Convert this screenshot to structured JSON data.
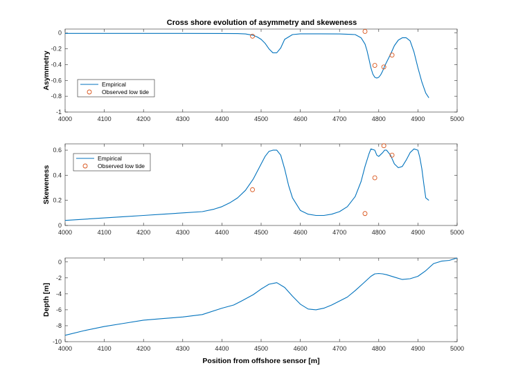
{
  "figure": {
    "title": "Cross shore evolution of asymmetry and skeweness"
  },
  "chart_data": [
    {
      "type": "line",
      "title": "Cross shore evolution of asymmetry and skeweness",
      "xlabel": "",
      "ylabel": "Asymmetry",
      "xlim": [
        4000,
        5000
      ],
      "ylim": [
        -1,
        0.05
      ],
      "xticks": [
        4000,
        4100,
        4200,
        4300,
        4400,
        4500,
        4600,
        4700,
        4800,
        4900,
        5000
      ],
      "xtick_labels": [
        "4000",
        "4100",
        "4200",
        "4300",
        "4400",
        "4500",
        "4600",
        "4700",
        "4800",
        "4900",
        "5000"
      ],
      "yticks": [
        -1,
        -0.8,
        -0.6,
        -0.4,
        -0.2,
        0
      ],
      "ytick_labels": [
        "-1",
        "-0.8",
        "-0.6",
        "-0.4",
        "-0.2",
        "0"
      ],
      "grid": false,
      "legend_position": "lower-left",
      "legend": [
        "Empirical",
        "Observed low tide"
      ],
      "line_color": "#0072BD",
      "marker_color": "#D95319",
      "series": [
        {
          "name": "Empirical",
          "style": "line",
          "x": [
            4000,
            4100,
            4200,
            4300,
            4400,
            4440,
            4460,
            4480,
            4490,
            4500,
            4510,
            4520,
            4530,
            4540,
            4550,
            4560,
            4580,
            4600,
            4650,
            4700,
            4740,
            4755,
            4765,
            4770,
            4775,
            4780,
            4785,
            4790,
            4795,
            4800,
            4805,
            4810,
            4815,
            4820,
            4830,
            4840,
            4850,
            4860,
            4870,
            4880,
            4890,
            4900,
            4910,
            4920,
            4928
          ],
          "y": [
            -0.005,
            -0.005,
            -0.005,
            -0.005,
            -0.006,
            -0.008,
            -0.012,
            -0.03,
            -0.05,
            -0.08,
            -0.13,
            -0.2,
            -0.25,
            -0.25,
            -0.19,
            -0.08,
            -0.02,
            -0.01,
            -0.01,
            -0.012,
            -0.02,
            -0.06,
            -0.14,
            -0.22,
            -0.33,
            -0.44,
            -0.52,
            -0.56,
            -0.57,
            -0.56,
            -0.53,
            -0.48,
            -0.42,
            -0.37,
            -0.27,
            -0.16,
            -0.09,
            -0.06,
            -0.06,
            -0.1,
            -0.24,
            -0.44,
            -0.62,
            -0.76,
            -0.82
          ]
        },
        {
          "name": "Observed low tide",
          "style": "marker",
          "x": [
            4478,
            4765,
            4790,
            4813,
            4834
          ],
          "y": [
            -0.04,
            0.02,
            -0.41,
            -0.43,
            -0.28
          ]
        }
      ]
    },
    {
      "type": "line",
      "title": "",
      "xlabel": "",
      "ylabel": "Skeweness",
      "xlim": [
        4000,
        5000
      ],
      "ylim": [
        0,
        0.65
      ],
      "xticks": [
        4000,
        4100,
        4200,
        4300,
        4400,
        4500,
        4600,
        4700,
        4800,
        4900,
        5000
      ],
      "xtick_labels": [
        "4000",
        "4100",
        "4200",
        "4300",
        "4400",
        "4500",
        "4600",
        "4700",
        "4800",
        "4900",
        "5000"
      ],
      "yticks": [
        0,
        0.2,
        0.4,
        0.6
      ],
      "ytick_labels": [
        "0",
        "0.2",
        "0.4",
        "0.6"
      ],
      "grid": false,
      "legend_position": "top-left",
      "legend": [
        "Empirical",
        "Observed low tide"
      ],
      "line_color": "#0072BD",
      "marker_color": "#D95319",
      "series": [
        {
          "name": "Empirical",
          "style": "line",
          "x": [
            4000,
            4050,
            4100,
            4150,
            4200,
            4250,
            4300,
            4350,
            4380,
            4400,
            4420,
            4440,
            4460,
            4480,
            4495,
            4510,
            4520,
            4530,
            4540,
            4550,
            4560,
            4570,
            4580,
            4600,
            4620,
            4640,
            4660,
            4680,
            4700,
            4720,
            4740,
            4755,
            4765,
            4775,
            4780,
            4790,
            4795,
            4800,
            4810,
            4815,
            4820,
            4830,
            4840,
            4850,
            4860,
            4870,
            4880,
            4890,
            4900,
            4905,
            4910,
            4915,
            4920,
            4928
          ],
          "y": [
            0.04,
            0.05,
            0.06,
            0.07,
            0.08,
            0.09,
            0.1,
            0.11,
            0.13,
            0.15,
            0.18,
            0.22,
            0.28,
            0.37,
            0.46,
            0.55,
            0.59,
            0.6,
            0.6,
            0.56,
            0.45,
            0.32,
            0.22,
            0.12,
            0.09,
            0.08,
            0.08,
            0.09,
            0.11,
            0.15,
            0.23,
            0.35,
            0.47,
            0.57,
            0.61,
            0.6,
            0.56,
            0.55,
            0.58,
            0.6,
            0.6,
            0.56,
            0.49,
            0.46,
            0.47,
            0.52,
            0.58,
            0.61,
            0.6,
            0.54,
            0.45,
            0.33,
            0.22,
            0.2
          ]
        },
        {
          "name": "Observed low tide",
          "style": "marker",
          "x": [
            4478,
            4765,
            4790,
            4813,
            4834
          ],
          "y": [
            0.285,
            0.095,
            0.38,
            0.635,
            0.56
          ]
        }
      ]
    },
    {
      "type": "line",
      "title": "",
      "xlabel": "Position from offshore sensor [m]",
      "ylabel": "Depth [m]",
      "xlim": [
        4000,
        5000
      ],
      "ylim": [
        -10,
        0.5
      ],
      "xticks": [
        4000,
        4100,
        4200,
        4300,
        4400,
        4500,
        4600,
        4700,
        4800,
        4900,
        5000
      ],
      "xtick_labels": [
        "4000",
        "4100",
        "4200",
        "4300",
        "4400",
        "4500",
        "4600",
        "4700",
        "4800",
        "4900",
        "5000"
      ],
      "yticks": [
        -10,
        -8,
        -6,
        -4,
        -2,
        0
      ],
      "ytick_labels": [
        "-10",
        "-8",
        "-6",
        "-4",
        "-2",
        "0"
      ],
      "grid": false,
      "line_color": "#0072BD",
      "series": [
        {
          "name": "",
          "style": "line",
          "x": [
            4000,
            4050,
            4100,
            4150,
            4200,
            4250,
            4300,
            4350,
            4400,
            4430,
            4450,
            4480,
            4500,
            4520,
            4540,
            4560,
            4580,
            4600,
            4620,
            4640,
            4660,
            4680,
            4700,
            4720,
            4740,
            4760,
            4780,
            4790,
            4800,
            4810,
            4820,
            4840,
            4860,
            4880,
            4900,
            4920,
            4940,
            4960,
            4980,
            5000
          ],
          "y": [
            -9.2,
            -8.6,
            -8.1,
            -7.7,
            -7.3,
            -7.1,
            -6.9,
            -6.6,
            -5.8,
            -5.4,
            -4.9,
            -4.1,
            -3.4,
            -2.8,
            -2.6,
            -3.2,
            -4.3,
            -5.3,
            -5.9,
            -6.0,
            -5.8,
            -5.4,
            -4.9,
            -4.4,
            -3.6,
            -2.7,
            -1.8,
            -1.5,
            -1.45,
            -1.5,
            -1.6,
            -1.9,
            -2.2,
            -2.1,
            -1.8,
            -1.1,
            -0.2,
            0.1,
            0.2,
            0.5
          ]
        }
      ]
    }
  ]
}
